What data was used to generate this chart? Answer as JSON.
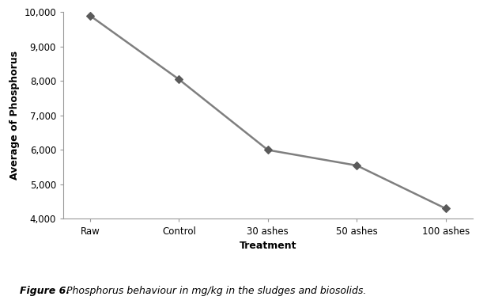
{
  "x_labels": [
    "Raw",
    "Control",
    "30 ashes",
    "50 ashes",
    "100 ashes"
  ],
  "y_values": [
    9900,
    8050,
    6000,
    5550,
    4300
  ],
  "xlabel": "Treatment",
  "ylabel": "Average of Phosphorus",
  "ylim": [
    4000,
    10000
  ],
  "yticks": [
    4000,
    5000,
    6000,
    7000,
    8000,
    9000,
    10000
  ],
  "ytick_labels": [
    "4,000",
    "5,000",
    "6,000",
    "7,000",
    "8,000",
    "9,000",
    "10,000"
  ],
  "line_color": "#7f7f7f",
  "marker": "D",
  "marker_size": 5,
  "marker_color": "#5a5a5a",
  "line_width": 1.8,
  "background_color": "#ffffff",
  "plot_bg_color": "#ffffff",
  "caption_bold": "Figure 6.",
  "caption_italic": " Phosphorus behaviour in mg/kg in the sludges and biosolids.",
  "axis_label_fontsize": 9,
  "tick_fontsize": 8.5,
  "caption_fontsize": 9
}
